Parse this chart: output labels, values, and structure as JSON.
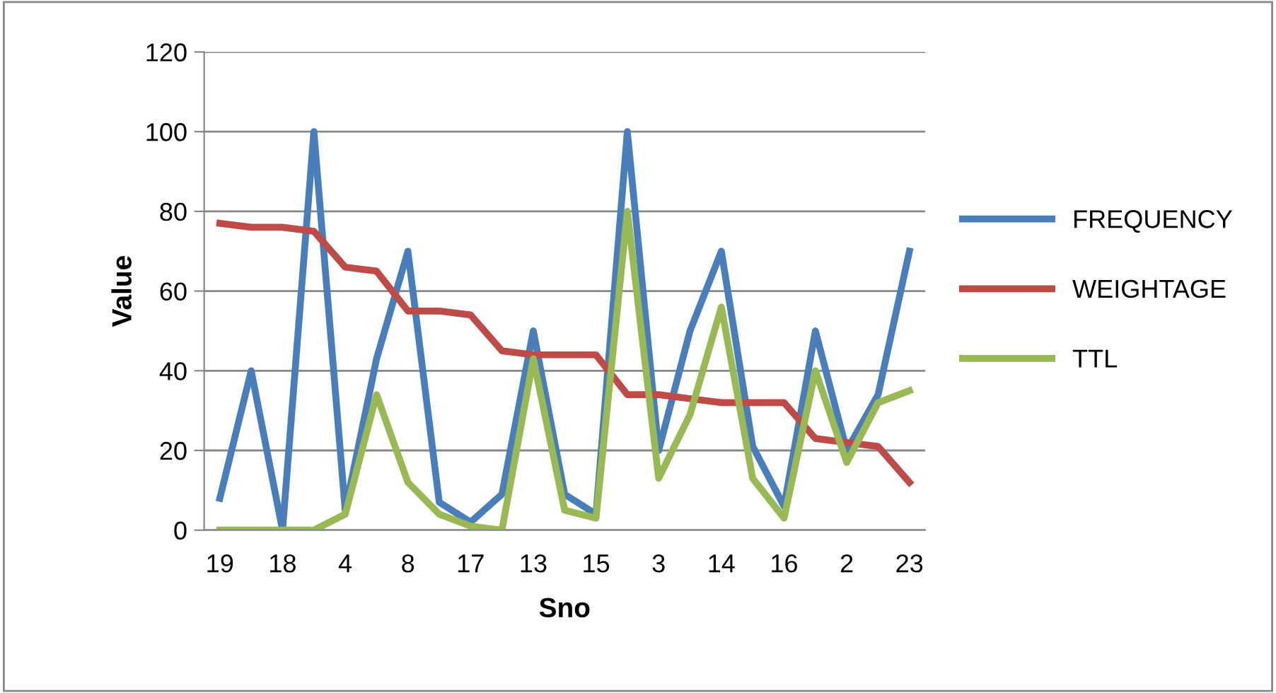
{
  "chart_data": {
    "type": "line",
    "xlabel": "Sno",
    "ylabel": "Value",
    "categories": [
      "19",
      null,
      "18",
      null,
      "4",
      null,
      "8",
      null,
      "17",
      null,
      "13",
      null,
      "15",
      null,
      "3",
      null,
      "14",
      null,
      "16",
      null,
      "2",
      null,
      "23"
    ],
    "series": [
      {
        "name": "FREQUENCY",
        "color": "#4a7ebb",
        "values": [
          8,
          40,
          0,
          100,
          5,
          43,
          70,
          7,
          2,
          9,
          50,
          9,
          4,
          100,
          20,
          50,
          70,
          21,
          6,
          50,
          20,
          34,
          70
        ]
      },
      {
        "name": "WEIGHTAGE",
        "color": "#be4b48",
        "values": [
          77,
          76,
          76,
          75,
          66,
          65,
          55,
          55,
          54,
          45,
          44,
          44,
          44,
          34,
          34,
          33,
          32,
          32,
          32,
          23,
          22,
          21,
          12
        ]
      },
      {
        "name": "TTL",
        "color": "#98b954",
        "values": [
          0,
          0,
          0,
          0,
          4,
          34,
          12,
          4,
          1,
          0,
          43,
          5,
          3,
          80,
          13,
          29,
          56,
          13,
          3,
          40,
          17,
          32,
          35
        ]
      }
    ],
    "ylim": [
      0,
      120
    ],
    "yticks": [
      0,
      20,
      40,
      60,
      80,
      100,
      120
    ],
    "grid": "y",
    "legend": "right",
    "marker": "none",
    "line_style": "solid"
  }
}
